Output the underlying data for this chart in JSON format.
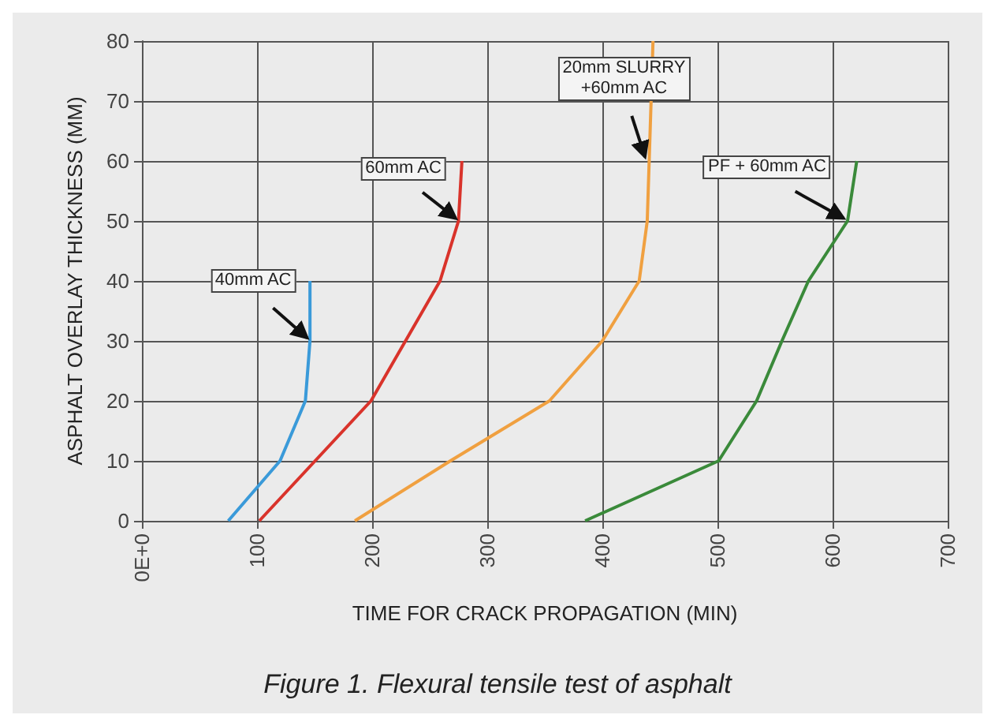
{
  "chart_data": {
    "type": "line",
    "xlabel": "TIME FOR CRACK PROPAGATION (MIN)",
    "ylabel": "ASPHALT OVERLAY THICKNESS (MM)",
    "xlim": [
      0,
      700
    ],
    "xticks": [
      {
        "value": 0,
        "label": "0E+0"
      },
      100,
      200,
      300,
      400,
      500,
      600,
      700
    ],
    "ylim": [
      0,
      80
    ],
    "yticks": [
      0,
      10,
      20,
      30,
      40,
      50,
      60,
      70,
      80
    ],
    "grid": true,
    "marker": "none",
    "line_style": "solid",
    "series": [
      {
        "color": "#3a9ad9",
        "x": [
          75,
          120,
          142,
          146,
          146
        ],
        "values": [
          0,
          10,
          20,
          30,
          40
        ]
      },
      {
        "color": "#d9332b",
        "x": [
          102,
          199,
          259,
          275,
          278
        ],
        "values": [
          0,
          20,
          40,
          50,
          60
        ]
      },
      {
        "color": "#f0a040",
        "x": [
          185,
          268,
          354,
          400,
          432,
          439,
          444
        ],
        "values": [
          0,
          10,
          20,
          30,
          40,
          50,
          80
        ]
      },
      {
        "color": "#3a8a3a",
        "x": [
          385,
          501,
          534,
          556,
          579,
          613,
          621
        ],
        "values": [
          0,
          10,
          20,
          30,
          40,
          50,
          60
        ]
      }
    ],
    "annotations": [
      {
        "text": "40mm AC",
        "x": 146,
        "y": 30
      },
      {
        "text": "60mm AC",
        "x": 275,
        "y": 50
      },
      {
        "text": "20mm SLURRY\n+60mm AC",
        "x": 438,
        "y": 60
      },
      {
        "text": "PF + 60mm AC",
        "x": 613,
        "y": 50
      },
      "Figure 1. Flexural tensile test of asphalt"
    ]
  }
}
